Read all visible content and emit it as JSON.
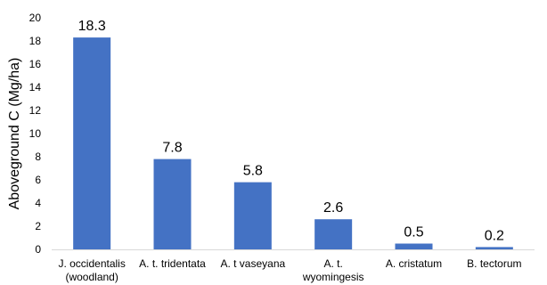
{
  "chart_data": {
    "type": "bar",
    "categories": [
      [
        "J. occidentalis",
        "(woodland)"
      ],
      [
        "A. t. tridentata"
      ],
      [
        "A. t vaseyana"
      ],
      [
        "A. t.",
        "wyomingesis"
      ],
      [
        "A. cristatum"
      ],
      [
        "B. tectorum"
      ]
    ],
    "values": [
      18.3,
      7.8,
      5.8,
      2.6,
      0.5,
      0.2
    ],
    "data_labels": [
      "18.3",
      "7.8",
      "5.8",
      "2.6",
      "0.5",
      "0.2"
    ],
    "ylabel": "Aboveground C (Mg/ha)",
    "ylim": [
      0,
      20
    ],
    "yticks": [
      0,
      2,
      4,
      6,
      8,
      10,
      12,
      14,
      16,
      18,
      20
    ],
    "grid": false,
    "bar_color": "#4472C4",
    "axis_color": "#D9D9D9"
  }
}
